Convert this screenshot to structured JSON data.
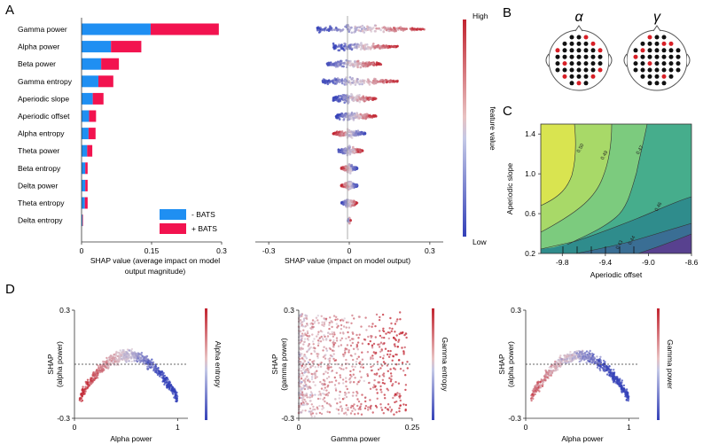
{
  "panel_labels": {
    "a": "A",
    "b": "B",
    "c": "C",
    "d": "D"
  },
  "colors": {
    "minus": "#1f8ff2",
    "plus": "#f2134f",
    "high": "#d3313f",
    "low": "#3344bb",
    "mid": "#c8c8d8"
  },
  "chart_data": [
    {
      "id": "A1",
      "type": "bar",
      "orientation": "horizontal",
      "stacked": true,
      "categories": [
        "Gamma power",
        "Alpha power",
        "Beta power",
        "Gamma entropy",
        "Aperiodic slope",
        "Aperiodic offset",
        "Alpha entropy",
        "Theta power",
        "Beta entropy",
        "Delta power",
        "Theta entropy",
        "Delta entropy"
      ],
      "series": [
        {
          "name": "- BATS",
          "values": [
            0.148,
            0.063,
            0.042,
            0.036,
            0.024,
            0.016,
            0.015,
            0.012,
            0.008,
            0.008,
            0.007,
            0.002
          ]
        },
        {
          "name": "+ BATS",
          "values": [
            0.146,
            0.065,
            0.038,
            0.032,
            0.023,
            0.015,
            0.015,
            0.011,
            0.005,
            0.005,
            0.006,
            0.001
          ]
        }
      ],
      "xlim": [
        0,
        0.3
      ],
      "xticks": [
        "0",
        "0.15",
        "0.3"
      ],
      "xlabel": "SHAP value (average impact on model output magnitude)",
      "xlabel_lines": [
        "SHAP value (average impact on model",
        "output magnitude)"
      ],
      "legend": [
        "- BATS",
        "+ BATS"
      ],
      "legend_position": "bottom-right"
    },
    {
      "id": "A2",
      "type": "scatter",
      "subtype": "beeswarm",
      "features": [
        "Gamma power",
        "Alpha power",
        "Beta power",
        "Gamma entropy",
        "Aperiodic slope",
        "Aperiodic offset",
        "Alpha entropy",
        "Theta power",
        "Beta entropy",
        "Delta power",
        "Theta entropy",
        "Delta entropy"
      ],
      "spread": [
        {
          "min": -0.12,
          "max": 0.28
        },
        {
          "min": -0.06,
          "max": 0.18
        },
        {
          "min": -0.09,
          "max": 0.12
        },
        {
          "min": -0.1,
          "max": 0.18
        },
        {
          "min": -0.06,
          "max": 0.1
        },
        {
          "min": -0.05,
          "max": 0.1
        },
        {
          "min": -0.06,
          "max": 0.06
        },
        {
          "min": -0.04,
          "max": 0.05
        },
        {
          "min": -0.03,
          "max": 0.03
        },
        {
          "min": -0.03,
          "max": 0.03
        },
        {
          "min": -0.03,
          "max": 0.03
        },
        {
          "min": -0.005,
          "max": 0.005
        }
      ],
      "xlim": [
        -0.35,
        0.35
      ],
      "xticks": [
        "-0.3",
        "0",
        "0.3"
      ],
      "xtick_values": [
        -0.3,
        0,
        0.3
      ],
      "xlabel": "SHAP value (impact on model output)",
      "colorbar": {
        "label": "feature value",
        "high": "High",
        "low": "Low"
      }
    },
    {
      "id": "B",
      "type": "other",
      "title_left": "α",
      "title_right": "γ",
      "grid_rows": [
        3,
        5,
        7,
        7,
        7,
        7,
        5,
        3
      ],
      "red_left": [
        [
          0,
          2
        ],
        [
          1,
          4
        ],
        [
          2,
          0
        ],
        [
          2,
          6
        ],
        [
          4,
          1
        ],
        [
          5,
          6
        ],
        [
          6,
          0
        ],
        [
          6,
          4
        ],
        [
          7,
          1
        ]
      ],
      "red_right": [
        [
          0,
          0
        ],
        [
          1,
          3
        ],
        [
          1,
          4
        ],
        [
          2,
          1
        ],
        [
          3,
          0
        ],
        [
          4,
          2
        ],
        [
          6,
          3
        ]
      ]
    },
    {
      "id": "C",
      "type": "heatmap",
      "subtype": "contour",
      "xlabel": "Aperiodic offset",
      "ylabel": "Aperiodic slope",
      "xlim": [
        -10.0,
        -8.6
      ],
      "ylim": [
        0.2,
        1.5
      ],
      "xticks": [
        "-9.8",
        "-9.4",
        "-9.0",
        "-8.6"
      ],
      "xtick_values": [
        -9.8,
        -9.4,
        -9.0,
        -8.6
      ],
      "yticks": [
        "1.4",
        "1.0",
        "0.6",
        "0.2"
      ],
      "ytick_values": [
        1.4,
        1.0,
        0.6,
        0.2
      ],
      "levels": [
        "0.50",
        "0.49",
        "0.47",
        "0.46",
        "0.44",
        "0.43"
      ]
    },
    {
      "id": "D1",
      "type": "scatter",
      "xlabel": "Alpha power",
      "ylabel": "SHAP\n(alpha power)",
      "ylabel_lines": [
        "SHAP",
        "(alpha power)"
      ],
      "xlim": [
        0,
        1.1
      ],
      "ylim": [
        -0.3,
        0.3
      ],
      "xticks": [
        "0",
        "1"
      ],
      "xtick_values": [
        0,
        1
      ],
      "yticks": [
        "0.3",
        "-0.3"
      ],
      "ytick_values": [
        0.3,
        -0.3
      ],
      "colorbar_label": "Alpha entropy",
      "shape": "hump",
      "peak_x": 0.45,
      "peak_y": 0.12
    },
    {
      "id": "D2",
      "type": "scatter",
      "xlabel": "Gamma power",
      "ylabel": "SHAP\n(gamma power)",
      "ylabel_lines": [
        "SHAP",
        "(gamma power)"
      ],
      "xlim": [
        0,
        0.25
      ],
      "ylim": [
        -0.3,
        0.3
      ],
      "xticks": [
        "0",
        "0.25"
      ],
      "xtick_values": [
        0,
        0.25
      ],
      "yticks": [
        "0.3",
        "-0.3"
      ],
      "ytick_values": [
        0.3,
        -0.3
      ],
      "colorbar_label": "Gamma entropy",
      "shape": "spread"
    },
    {
      "id": "D3",
      "type": "scatter",
      "xlabel": "Alpha power",
      "ylabel": "SHAP\n(alpha power)",
      "ylabel_lines": [
        "SHAP",
        "(alpha power)"
      ],
      "xlim": [
        0,
        1.1
      ],
      "ylim": [
        -0.3,
        0.3
      ],
      "xticks": [
        "0",
        "1"
      ],
      "xtick_values": [
        0,
        1
      ],
      "yticks": [
        "0.3",
        "-0.3"
      ],
      "ytick_values": [
        0.3,
        -0.3
      ],
      "colorbar_label": "Gamma power",
      "shape": "hump",
      "peak_x": 0.45,
      "peak_y": 0.12
    }
  ]
}
